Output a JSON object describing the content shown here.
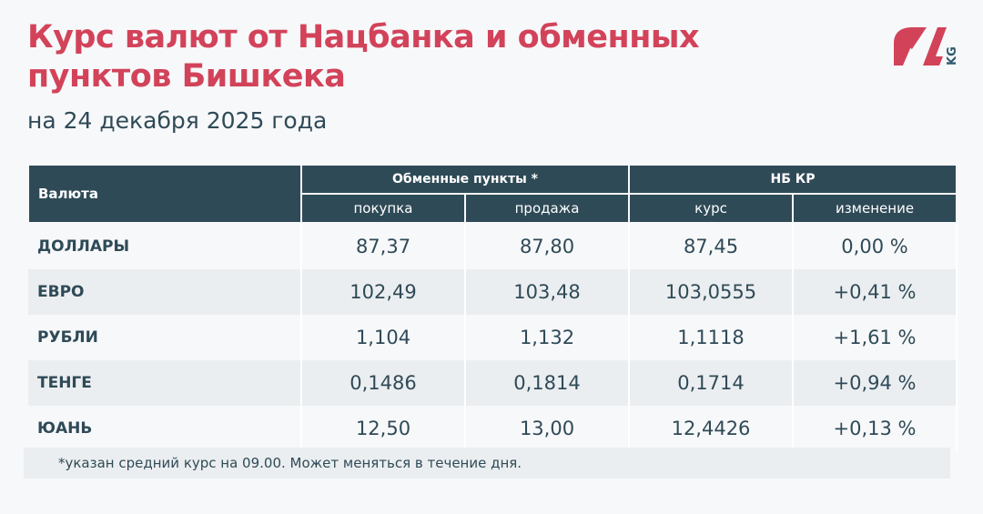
{
  "title": "Курс валют от Нацбанка и обменных пунктов Бишкека",
  "subtitle": "на 24 декабря 2025 года",
  "logo": {
    "text": "24 KG",
    "colors": {
      "main": "#d2435a",
      "kg": "#2f5a6e"
    }
  },
  "table": {
    "currency_header": "Валюта",
    "group1": "Обменные пункты *",
    "group2": "НБ КР",
    "sub": [
      "покупка",
      "продажа",
      "курс",
      "изменение"
    ],
    "rows": [
      [
        "ДОЛЛАРЫ",
        "87,37",
        "87,80",
        "87,45",
        "0,00 %"
      ],
      [
        "ЕВРО",
        "102,49",
        "103,48",
        "103,0555",
        "+0,41 %"
      ],
      [
        "РУБЛИ",
        "1,104",
        "1,132",
        "1,1118",
        "+1,61 %"
      ],
      [
        "ТЕНГЕ",
        "0,1486",
        "0,1814",
        "0,1714",
        "+0,94 %"
      ],
      [
        "ЮАНЬ",
        "12,50",
        "13,00",
        "12,4426",
        "+0,13 %"
      ]
    ]
  },
  "footnote": "*указан средний курс на 09.00. Может меняться в течение дня.",
  "colors": {
    "accent": "#d2435a",
    "header": "#2f4a57"
  }
}
